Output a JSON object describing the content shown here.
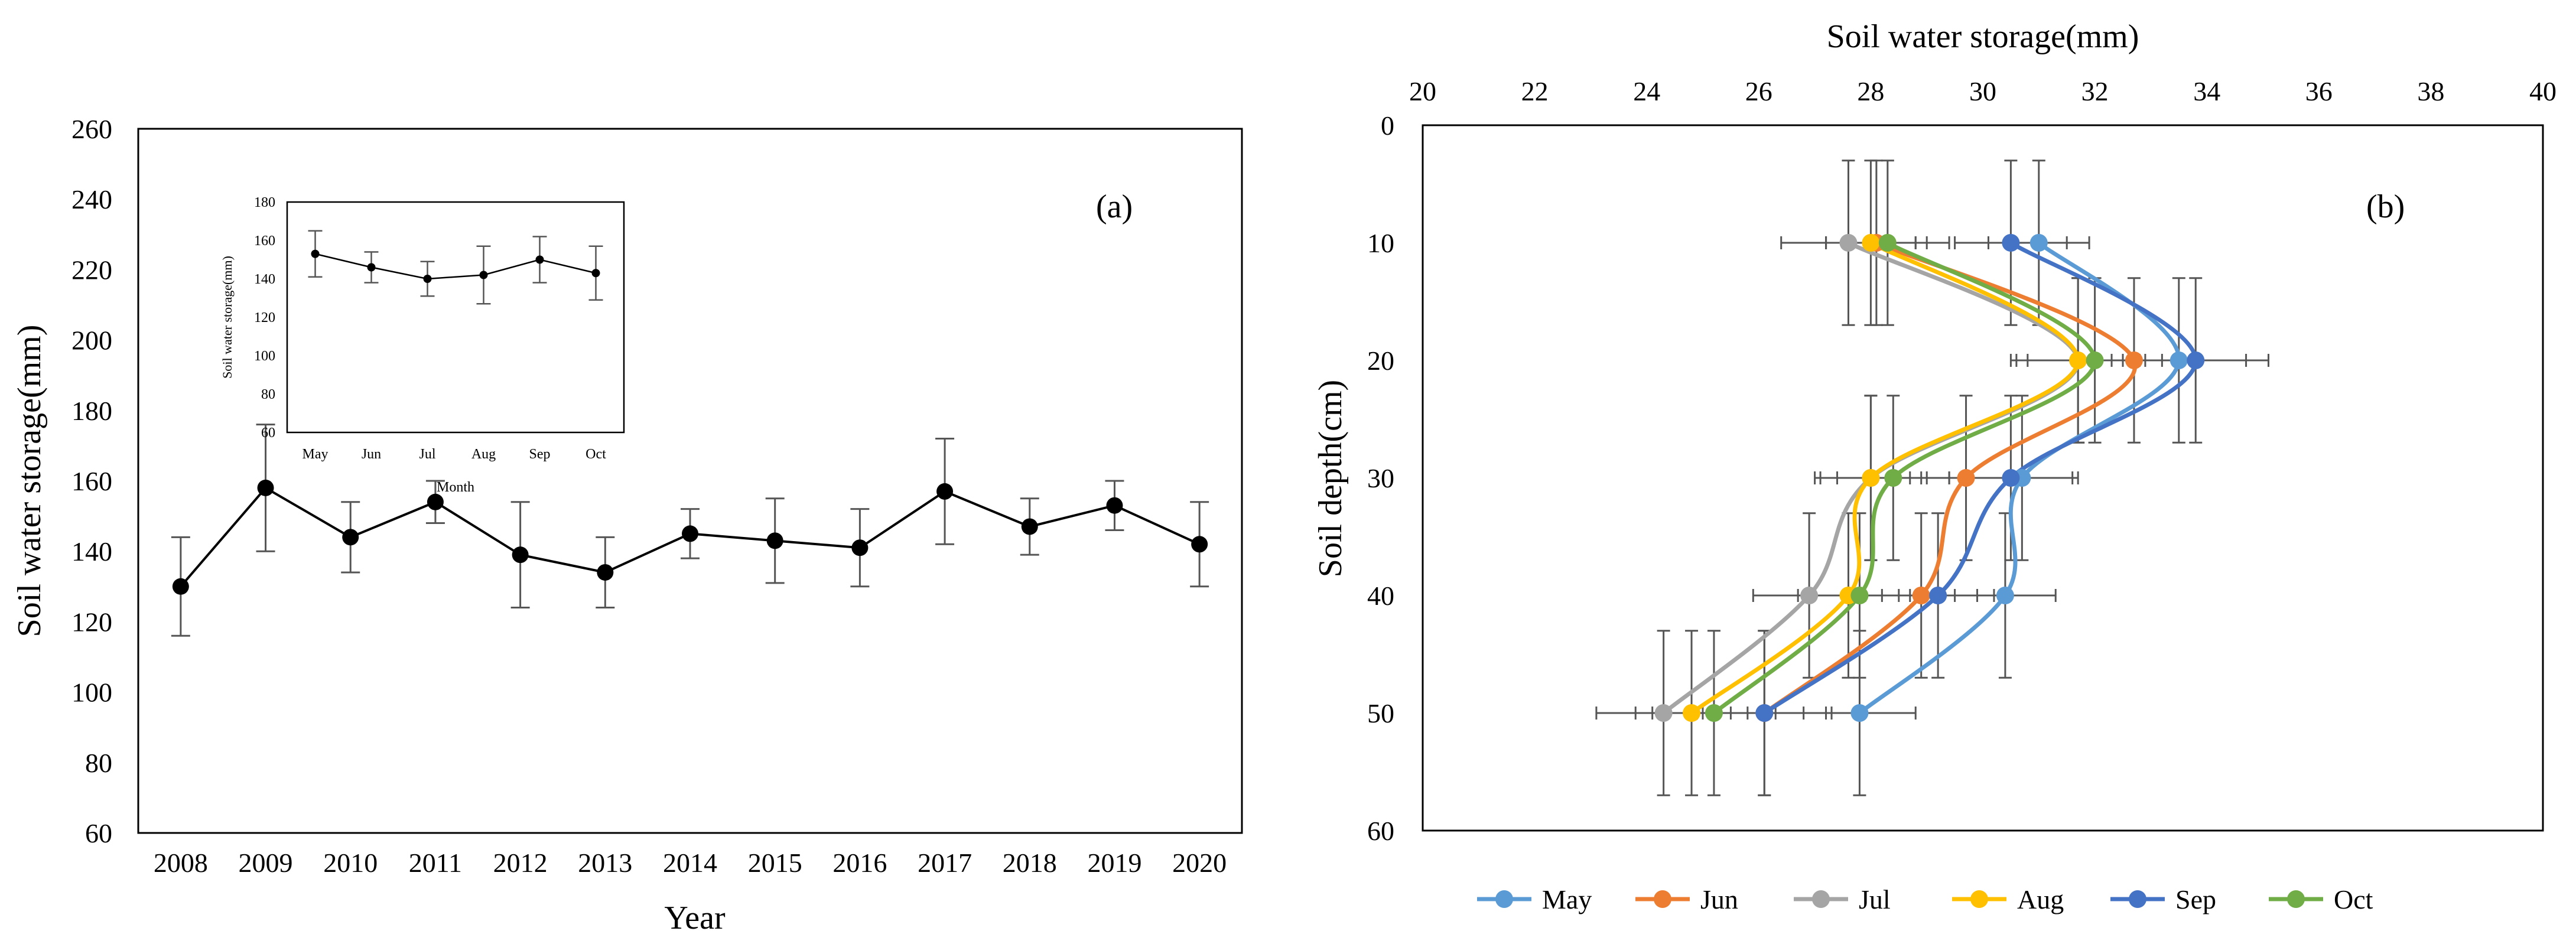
{
  "chart_data": [
    {
      "panel_label": "(a)",
      "type": "line",
      "title": "",
      "xlabel": "Year",
      "ylabel": "Soil water storage(mm)",
      "ylim": [
        60,
        260
      ],
      "yticks": [
        60,
        80,
        100,
        120,
        140,
        160,
        180,
        200,
        220,
        240,
        260
      ],
      "categories": [
        "2008",
        "2009",
        "2010",
        "2011",
        "2012",
        "2013",
        "2014",
        "2015",
        "2016",
        "2017",
        "2018",
        "2019",
        "2020"
      ],
      "series": [
        {
          "name": "Soil water storage",
          "color": "#000000",
          "values": [
            130,
            158,
            144,
            154,
            139,
            134,
            145,
            143,
            141,
            157,
            147,
            153,
            142
          ],
          "err_low": [
            14,
            18,
            10,
            6,
            15,
            10,
            7,
            12,
            11,
            15,
            8,
            7,
            12
          ],
          "err_high": [
            14,
            18,
            10,
            6,
            15,
            10,
            7,
            12,
            11,
            15,
            8,
            7,
            12
          ]
        }
      ],
      "inset": {
        "type": "line",
        "xlabel": "Month",
        "ylabel": "Soil water storage(mm)",
        "ylim": [
          60,
          180
        ],
        "yticks": [
          60,
          80,
          100,
          120,
          140,
          160,
          180
        ],
        "categories": [
          "May",
          "Jun",
          "Jul",
          "Aug",
          "Sep",
          "Oct"
        ],
        "values": [
          153,
          146,
          140,
          142,
          150,
          143
        ],
        "err_low": [
          12,
          8,
          9,
          15,
          12,
          14
        ],
        "err_high": [
          12,
          8,
          9,
          15,
          12,
          14
        ]
      }
    },
    {
      "panel_label": "(b)",
      "type": "line",
      "title": "",
      "xlabel": "Soil water storage(mm)",
      "ylabel": "Soil depth(cm)",
      "x_axis_position": "top",
      "y_inverted": true,
      "xlim": [
        20,
        40
      ],
      "xticks": [
        20,
        22,
        24,
        26,
        28,
        30,
        32,
        34,
        36,
        38,
        40
      ],
      "ylim": [
        0,
        60
      ],
      "yticks": [
        0,
        10,
        20,
        30,
        40,
        50,
        60
      ],
      "legend_position": "bottom",
      "depths": [
        10,
        20,
        30,
        40,
        50
      ],
      "series": [
        {
          "name": "May",
          "color": "#5B9BD5",
          "values": [
            31.0,
            33.5,
            30.7,
            30.4,
            27.8
          ],
          "err": [
            0.9,
            1.2,
            1.0,
            0.9,
            1.0
          ]
        },
        {
          "name": "Jun",
          "color": "#ED7D31",
          "values": [
            28.1,
            32.7,
            29.7,
            28.9,
            26.1
          ],
          "err": [
            0.9,
            1.1,
            1.0,
            1.0,
            1.1
          ]
        },
        {
          "name": "Jul",
          "color": "#A5A5A5",
          "values": [
            27.6,
            31.7,
            28.0,
            26.9,
            24.3
          ],
          "err": [
            1.2,
            1.2,
            1.0,
            1.0,
            1.2
          ]
        },
        {
          "name": "Aug",
          "color": "#FFC000",
          "values": [
            28.0,
            31.7,
            28.0,
            27.6,
            24.8
          ],
          "err": [
            0.8,
            1.1,
            0.9,
            0.9,
            1.0
          ]
        },
        {
          "name": "Sep",
          "color": "#4472C4",
          "values": [
            30.5,
            33.8,
            30.5,
            29.2,
            26.1
          ],
          "err": [
            1.0,
            1.3,
            1.1,
            1.0,
            1.2
          ]
        },
        {
          "name": "Oct",
          "color": "#70AD47",
          "values": [
            28.3,
            32.0,
            28.4,
            27.8,
            25.2
          ],
          "err": [
            1.1,
            1.2,
            1.0,
            0.9,
            1.1
          ]
        }
      ]
    }
  ]
}
